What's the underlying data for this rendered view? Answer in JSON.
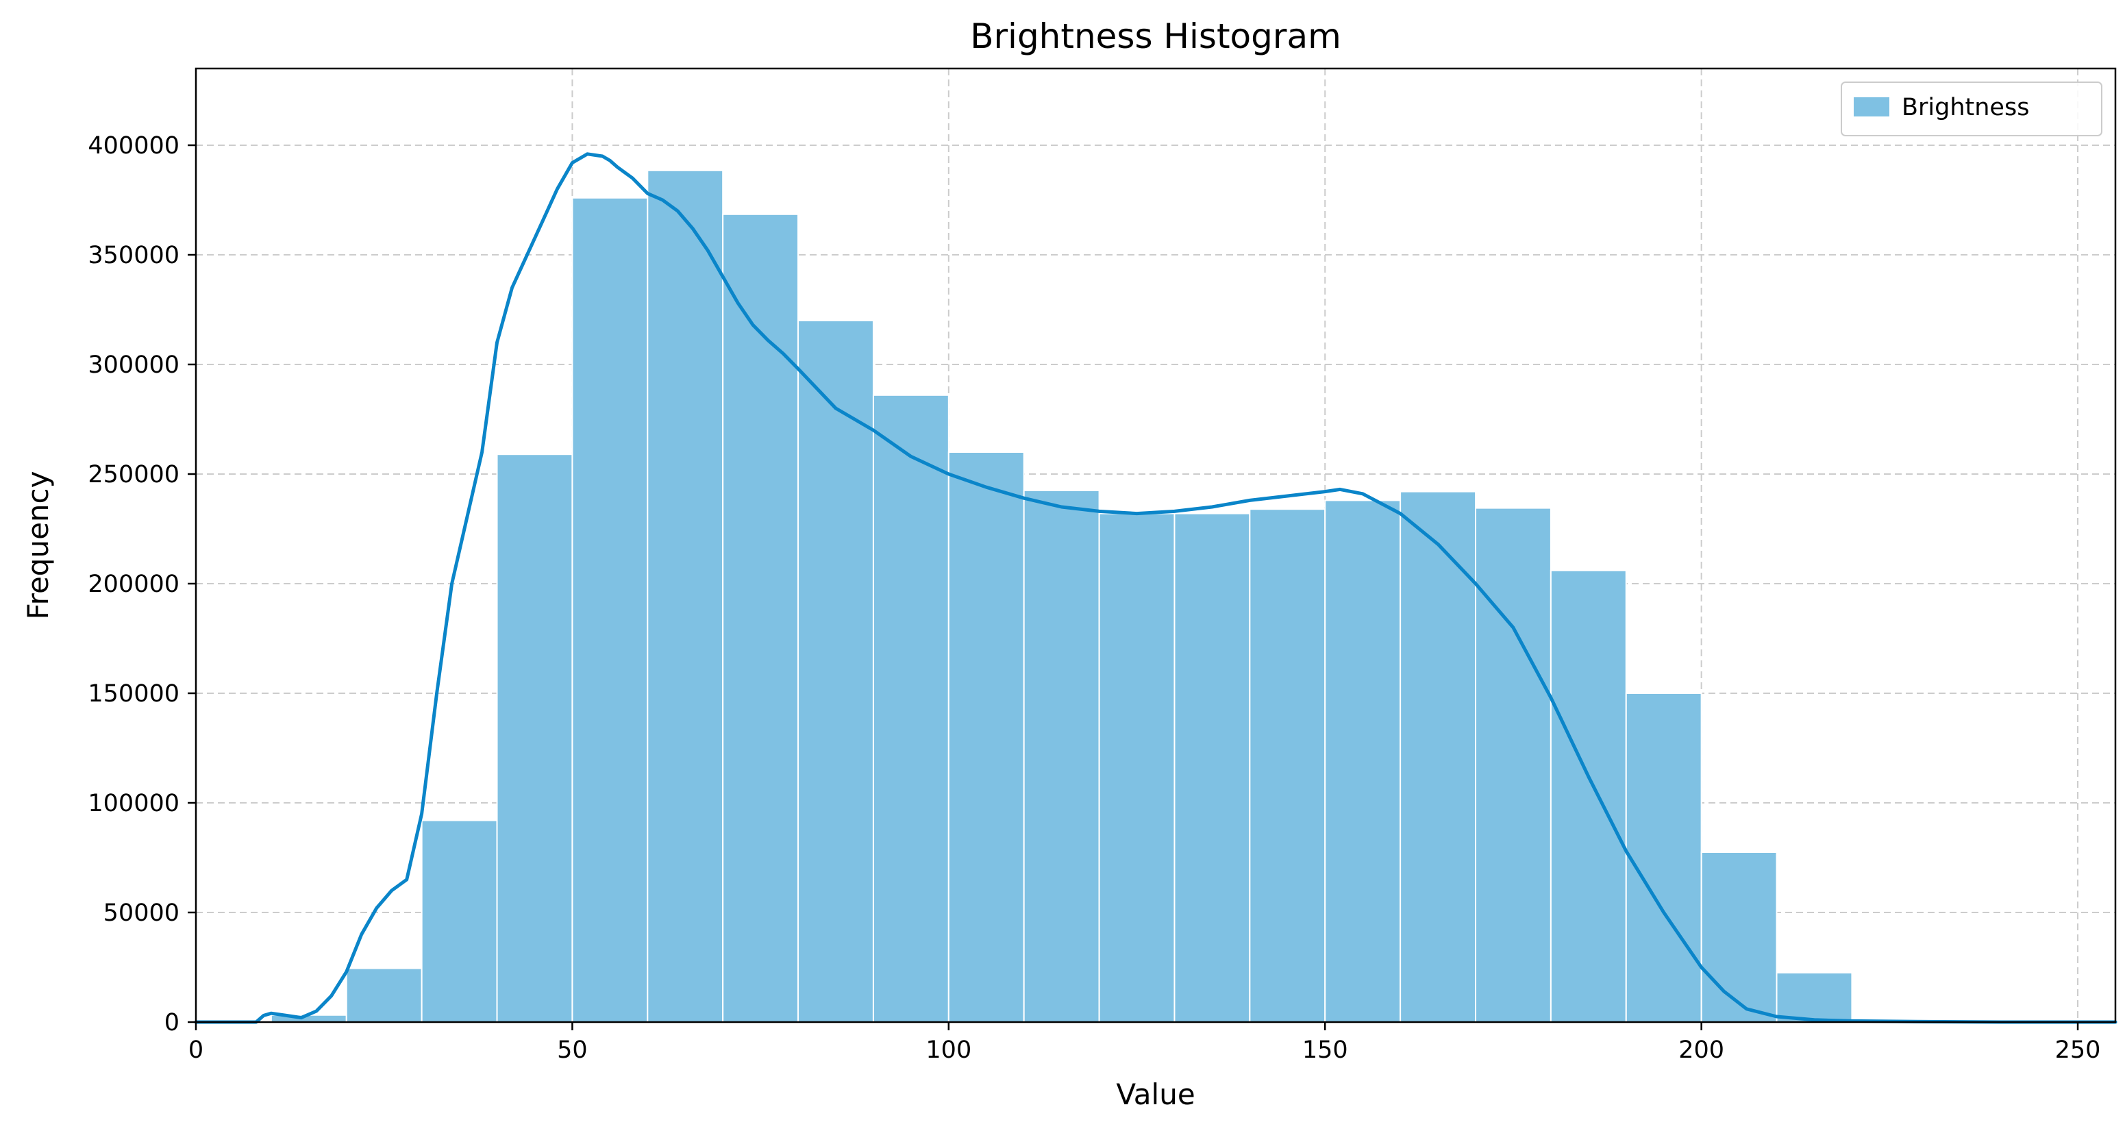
{
  "chart_data": {
    "type": "bar",
    "title": "Brightness Histogram",
    "xlabel": "Value",
    "ylabel": "Frequency",
    "xlim": [
      0,
      255
    ],
    "ylim": [
      0,
      435000
    ],
    "x_ticks": [
      "0",
      "50",
      "100",
      "150",
      "200",
      "250"
    ],
    "y_ticks": [
      "0",
      "50000",
      "100000",
      "150000",
      "200000",
      "250000",
      "300000",
      "350000",
      "400000"
    ],
    "grid": true,
    "legend_position": "top-right",
    "legend": [
      "Brightness"
    ],
    "bin_width": 10,
    "bin_edges": [
      0,
      10,
      20,
      30,
      40,
      50,
      60,
      70,
      80,
      90,
      100,
      110,
      120,
      130,
      140,
      150,
      160,
      170,
      180,
      190,
      200,
      210,
      220,
      230,
      240,
      250
    ],
    "series": [
      {
        "name": "Brightness",
        "values": [
          300,
          3200,
          24500,
          92000,
          259000,
          376000,
          388500,
          368500,
          320000,
          286000,
          260000,
          242500,
          232000,
          232000,
          234000,
          238000,
          242000,
          234500,
          206000,
          150000,
          77500,
          22500,
          0,
          0,
          0
        ],
        "color": "#7fc1e3"
      }
    ],
    "kde": {
      "color": "#0a85c9",
      "x": [
        0,
        8,
        9,
        10,
        12,
        14,
        16,
        18,
        20,
        22,
        24,
        26,
        28,
        30,
        32,
        34,
        36,
        38,
        40,
        42,
        44,
        46,
        48,
        50,
        52,
        54,
        55,
        56,
        58,
        60,
        62,
        64,
        66,
        68,
        70,
        72,
        74,
        76,
        78,
        80,
        85,
        90,
        95,
        100,
        105,
        110,
        115,
        120,
        125,
        130,
        135,
        140,
        145,
        150,
        152,
        155,
        160,
        165,
        170,
        175,
        180,
        185,
        190,
        195,
        200,
        203,
        206,
        210,
        215,
        220,
        230,
        240,
        255
      ],
      "y": [
        0,
        0,
        3000,
        4000,
        3000,
        2000,
        5000,
        12000,
        23000,
        40000,
        52000,
        60000,
        65000,
        95000,
        150000,
        200000,
        230000,
        260000,
        310000,
        335000,
        350000,
        365000,
        380000,
        392000,
        396000,
        395000,
        393000,
        390000,
        385000,
        378000,
        375000,
        370000,
        362000,
        352000,
        340000,
        328000,
        318000,
        311000,
        305000,
        298000,
        280000,
        270000,
        258000,
        250000,
        244000,
        239000,
        235000,
        233000,
        232000,
        233000,
        235000,
        238000,
        240000,
        242000,
        243000,
        241000,
        232000,
        218000,
        200000,
        180000,
        148000,
        112000,
        78000,
        50000,
        25000,
        14000,
        6000,
        2500,
        1000,
        500,
        200,
        0,
        0
      ]
    }
  }
}
